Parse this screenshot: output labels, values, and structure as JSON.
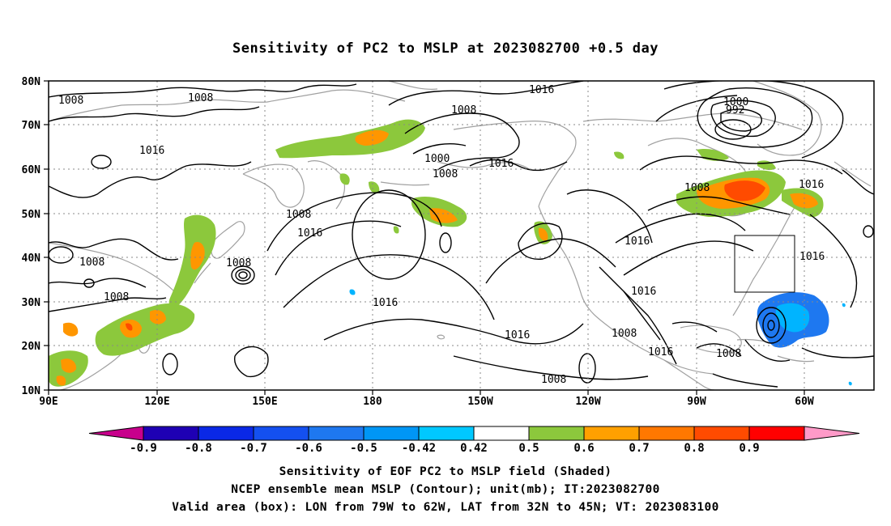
{
  "title": "Sensitivity of PC2 to MSLP at 2023082700 +0.5 day",
  "map": {
    "lat_ticks": [
      "80N",
      "70N",
      "60N",
      "50N",
      "40N",
      "30N",
      "20N",
      "10N"
    ],
    "lon_ticks": [
      "90E",
      "120E",
      "150E",
      "180",
      "150W",
      "120W",
      "90W",
      "60W"
    ],
    "contour_labels": [
      {
        "text": "1008",
        "id": "c1"
      },
      {
        "text": "1008",
        "id": "c2"
      },
      {
        "text": "1016",
        "id": "c3"
      },
      {
        "text": "1008",
        "id": "c4"
      },
      {
        "text": "1000",
        "id": "c5"
      },
      {
        "text": "1008",
        "id": "c6"
      },
      {
        "text": "1016",
        "id": "c7"
      },
      {
        "text": "1016",
        "id": "c8"
      },
      {
        "text": "1000",
        "id": "c9"
      },
      {
        "text": "992",
        "id": "c10"
      },
      {
        "text": "1008",
        "id": "c11"
      },
      {
        "text": "1016",
        "id": "c12"
      },
      {
        "text": "1016",
        "id": "c13"
      },
      {
        "text": "1016",
        "id": "c14"
      },
      {
        "text": "1008",
        "id": "c15"
      },
      {
        "text": "1008",
        "id": "c16"
      },
      {
        "text": "1008",
        "id": "c17"
      },
      {
        "text": "1016",
        "id": "c18"
      },
      {
        "text": "1016",
        "id": "c19"
      },
      {
        "text": "1016",
        "id": "c20"
      },
      {
        "text": "1016",
        "id": "c21"
      },
      {
        "text": "1008",
        "id": "c22"
      },
      {
        "text": "1008",
        "id": "c23"
      },
      {
        "text": "1016",
        "id": "c24"
      },
      {
        "text": "1008",
        "id": "c25"
      }
    ]
  },
  "colorbar": {
    "labels": [
      "-0.9",
      "-0.8",
      "-0.7",
      "-0.6",
      "-0.5",
      "-0.42",
      "0.42",
      "0.5",
      "0.6",
      "0.7",
      "0.8",
      "0.9"
    ],
    "colors": {
      "low_arrow": "#c8008c",
      "bins": [
        "#1e00b4",
        "#0a28e6",
        "#1450f0",
        "#1e78f0",
        "#0096f5",
        "#00c8ff",
        "#ffffff",
        "#8cc83c",
        "#ffa000",
        "#ff7800",
        "#ff4b00",
        "#ff0000"
      ],
      "high_arrow": "#ff9ac8"
    }
  },
  "captions": {
    "line1": "Sensitivity of EOF PC2 to MSLP field (Shaded)",
    "line2": "NCEP ensemble mean MSLP (Contour); unit(mb); IT:2023082700",
    "line3": "Valid area (box): LON from 79W to 62W, LAT from 32N to 45N; VT: 2023083100"
  },
  "colors": {
    "positive_green": "#8cc83c",
    "positive_orange": "#ff9600",
    "positive_red": "#ff4b00",
    "negative_blue": "#1e78f0",
    "negative_cyan": "#00b4ff",
    "coastline": "#a0a0a0"
  }
}
